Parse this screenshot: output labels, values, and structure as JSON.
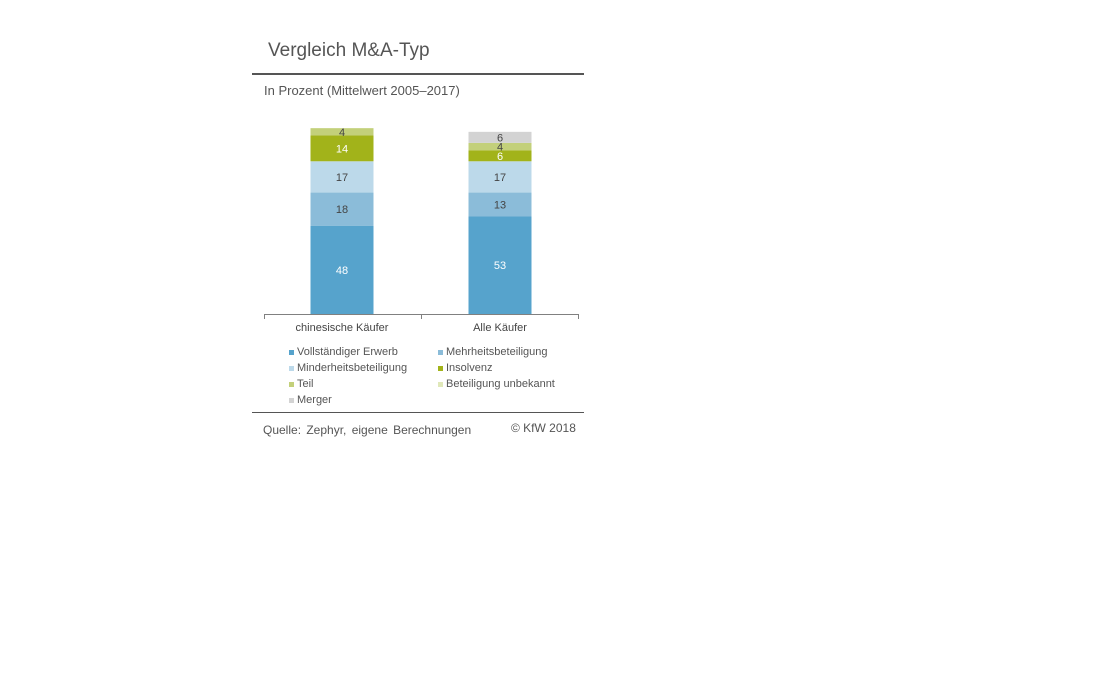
{
  "header": {
    "title": "Vergleich M&A-Typ",
    "subtitle": "In Prozent (Mittelwert 2005–2017)"
  },
  "footer": {
    "source": "Quelle: Zephyr, eigene Berechnungen",
    "copyright": "© KfW 2018"
  },
  "chart_data": {
    "type": "bar",
    "stacked": true,
    "title": "Vergleich M&A-Typ",
    "subtitle": "In Prozent (Mittelwert 2005–2017)",
    "categories": [
      "chinesische Käufer",
      "Alle Käufer"
    ],
    "ylim": [
      0,
      100
    ],
    "grid": false,
    "legend_position": "bottom",
    "series": [
      {
        "name": "Vollständiger Erwerb",
        "values": [
          48,
          53
        ],
        "color": "#56a3cc",
        "label_color": "#ffffff"
      },
      {
        "name": "Mehrheitsbeteiligung",
        "values": [
          18,
          13
        ],
        "color": "#8bbcd9",
        "label_color": "#444444"
      },
      {
        "name": "Minderheitsbeteiligung",
        "values": [
          17,
          17
        ],
        "color": "#bcd9ea",
        "label_color": "#444444"
      },
      {
        "name": "Insolvenz",
        "values": [
          14,
          6
        ],
        "color": "#a2b31a",
        "label_color": "#ffffff"
      },
      {
        "name": "Teil",
        "values": [
          4,
          4
        ],
        "color": "#c3d07a",
        "label_color": "#444444"
      },
      {
        "name": "Beteiligung unbekannt",
        "values": [
          0,
          0
        ],
        "color": "#e0e8b9",
        "label_color": "#444444"
      },
      {
        "name": "Merger",
        "values": [
          0,
          6
        ],
        "color": "#d3d3d3",
        "label_color": "#444444"
      }
    ]
  }
}
